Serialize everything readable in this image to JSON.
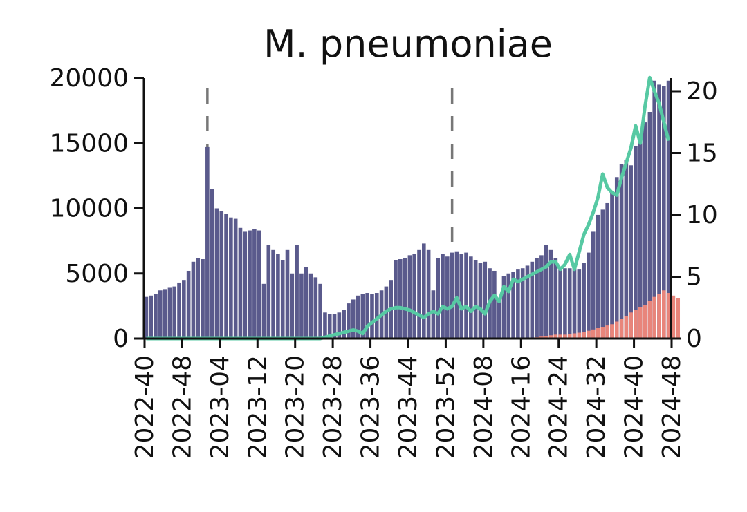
{
  "chart_data": {
    "type": "bar",
    "title": "M. pneumoniae",
    "xlabel": "",
    "ylabel": "",
    "y2label": "",
    "ylim": [
      0,
      20000
    ],
    "y2lim": [
      0,
      21
    ],
    "yticks": [
      "0",
      "5000",
      "10000",
      "15000",
      "20000"
    ],
    "y2ticks": [
      "0",
      "5",
      "10",
      "15",
      "20"
    ],
    "x_tick_labels": [
      "2022-40",
      "2022-48",
      "2023-04",
      "2023-12",
      "2023-20",
      "2023-28",
      "2023-36",
      "2023-44",
      "2023-52",
      "2024-08",
      "2024-16",
      "2024-24",
      "2024-32",
      "2024-40",
      "2024-48"
    ],
    "x_tick_weeks": [
      0,
      8,
      16,
      24,
      32,
      40,
      48,
      56,
      64,
      72,
      80,
      88,
      96,
      104,
      112
    ],
    "vertical_markers": [
      13,
      65
    ],
    "grid": false,
    "series": [
      {
        "values": [
          3200,
          3300,
          3400,
          3700,
          3800,
          3900,
          4000,
          4300,
          4500,
          5200,
          5900,
          6200,
          6100,
          14700,
          11500,
          10000,
          9800,
          9600,
          9300,
          9200,
          8500,
          8200,
          8300,
          8400,
          8300,
          4200,
          7200,
          6800,
          6500,
          6000,
          6800,
          5000,
          7200,
          5000,
          5500,
          5000,
          4700,
          4200,
          2000,
          1900,
          1900,
          2000,
          2200,
          2700,
          3000,
          3300,
          3400,
          3500,
          3400,
          3500,
          3700,
          4000,
          4500,
          6000,
          6100,
          6200,
          6400,
          6500,
          6800,
          7300,
          6800,
          3700,
          6200,
          6500,
          6300,
          6600,
          6700,
          6500,
          6600,
          6300,
          6000,
          5800,
          5900,
          5400,
          5200,
          2800,
          4800,
          5000,
          5100,
          5300,
          5400,
          5600,
          5900,
          6200,
          6400,
          7200,
          6800,
          6200,
          5500,
          5400,
          5400,
          5600,
          5300,
          5800,
          6600,
          8200,
          9500,
          9900,
          10400,
          11300,
          12400,
          13400,
          13700,
          13300,
          14800,
          15500,
          16600,
          17400,
          19800,
          19500,
          19400,
          19800
        ]
      },
      {
        "values": [
          0,
          0,
          0,
          0,
          0,
          0,
          0,
          0,
          0,
          0,
          0,
          0,
          0,
          0,
          0,
          0,
          0,
          0,
          0,
          0,
          0,
          0,
          0,
          0,
          0,
          0,
          0,
          0,
          0,
          0,
          0,
          0,
          0,
          0,
          0,
          0,
          0,
          0,
          0,
          0,
          0,
          0,
          0,
          0,
          0,
          0,
          0,
          0,
          0,
          0,
          0,
          0,
          0,
          0,
          0,
          0,
          0,
          0,
          0,
          0,
          0,
          0,
          0,
          0,
          0,
          0,
          0,
          0,
          0,
          0,
          0,
          0,
          0,
          0,
          0,
          0,
          0,
          0,
          0,
          0,
          0,
          0,
          50,
          100,
          150,
          200,
          250,
          300,
          300,
          300,
          350,
          400,
          450,
          500,
          600,
          700,
          800,
          900,
          1000,
          1100,
          1300,
          1500,
          1700,
          2000,
          2200,
          2400,
          2600,
          2900,
          3200,
          3400,
          3700,
          3500,
          3300,
          3100
        ]
      },
      {
        "y_axis": "right",
        "values": [
          0,
          0,
          0,
          0,
          0,
          0,
          0,
          0,
          0,
          0,
          0,
          0,
          0,
          0,
          0,
          0,
          0,
          0,
          0,
          0,
          0,
          0,
          0,
          0,
          0,
          0,
          0,
          0,
          0,
          0,
          0,
          0,
          0,
          0,
          0,
          0,
          0,
          0,
          0.1,
          0.2,
          0.3,
          0.4,
          0.5,
          0.6,
          0.7,
          0.6,
          0.4,
          1.0,
          1.3,
          1.6,
          1.9,
          2.2,
          2.4,
          2.5,
          2.5,
          2.4,
          2.3,
          2.1,
          1.9,
          1.7,
          2.0,
          2.2,
          2.0,
          2.6,
          2.4,
          2.6,
          3.3,
          2.4,
          2.6,
          2.2,
          2.6,
          2.4,
          2.0,
          3.0,
          3.5,
          3.0,
          4.2,
          3.8,
          4.8,
          4.6,
          4.8,
          5.0,
          5.2,
          5.4,
          5.6,
          5.8,
          6.2,
          6.2,
          5.6,
          6.0,
          6.8,
          5.6,
          7.0,
          8.4,
          9.2,
          10.2,
          11.4,
          13.3,
          12.2,
          11.8,
          11.6,
          13.0,
          14.2,
          15.4,
          17.2,
          15.8,
          18.8,
          21.1,
          20.0,
          19.0,
          17.5,
          16.0
        ]
      }
    ],
    "colors": {
      "bar_primary": "#5a5a8c",
      "bar_secondary": "#e8857b",
      "line": "#57c9a3",
      "axis": "#111111",
      "marker": "#777777"
    }
  }
}
